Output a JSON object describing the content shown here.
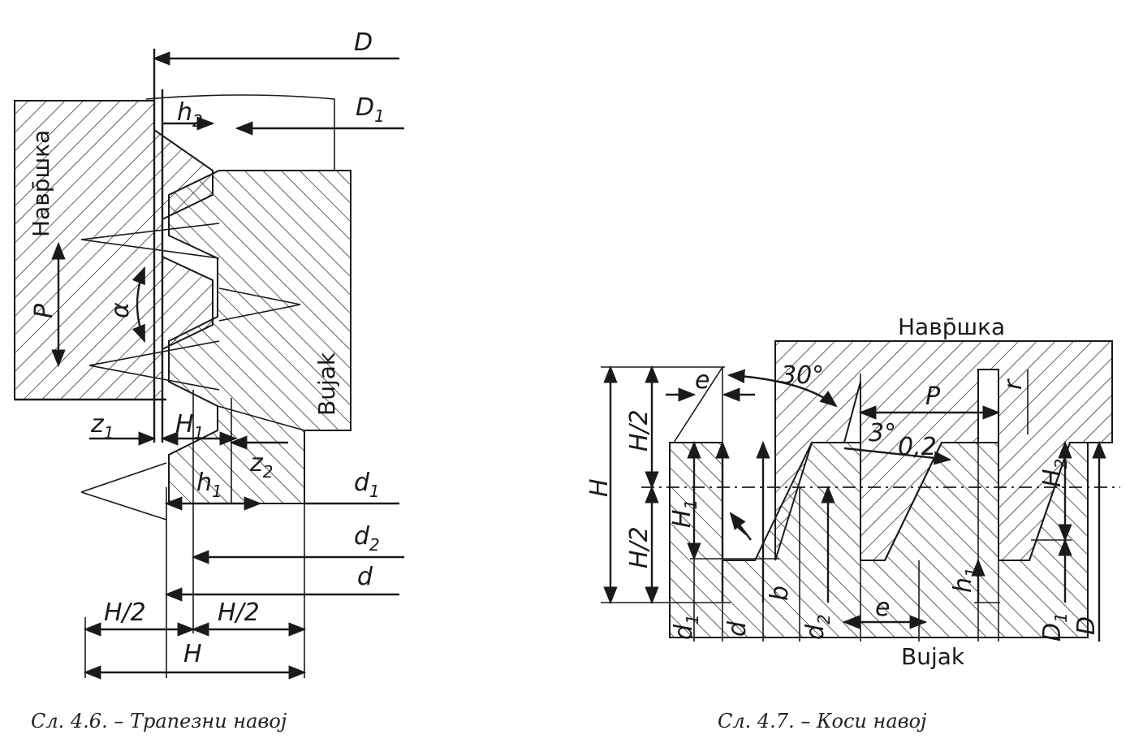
{
  "fig1": {
    "nut_label": "Навр̄шка",
    "bolt_label": "Bujak",
    "dims": {
      "D": "D",
      "D1": "D",
      "D1_sub": "1",
      "h2": "h",
      "h2_sub": "2",
      "P": "P",
      "alpha": "α",
      "z1": "z",
      "z1_sub": "1",
      "H1": "H",
      "H1_sub": "1",
      "z2": "z",
      "z2_sub": "2",
      "h1": "h",
      "h1_sub": "1",
      "d1": "d",
      "d1_sub": "1",
      "d2": "d",
      "d2_sub": "2",
      "d": "d",
      "H_half_left": "H/2",
      "H_half_right": "H/2",
      "H": "H"
    },
    "caption": "Сл. 4.6. – Трапезни навој"
  },
  "fig2": {
    "nut_label": "Навр̄шка",
    "bolt_label": "Bujak",
    "dims": {
      "angle30": "30°",
      "angle3": "3°",
      "offset": "0,2",
      "e_top": "e",
      "e_bottom": "e",
      "P": "P",
      "H": "H",
      "H_half_top": "H/2",
      "H_half_bottom": "H/2",
      "H1": "H",
      "H1_sub": "1",
      "r": "r",
      "r2": "r",
      "H2": "H",
      "H2_sub": "2",
      "h1": "h",
      "h1_sub": "1",
      "b": "b",
      "d1": "d",
      "d1_sub": "1",
      "d": "d",
      "d2": "d",
      "d2_sub": "2",
      "D1": "D",
      "D1_sub": "1",
      "D": "D"
    },
    "caption": "Сл. 4.7. – Коси навој"
  }
}
